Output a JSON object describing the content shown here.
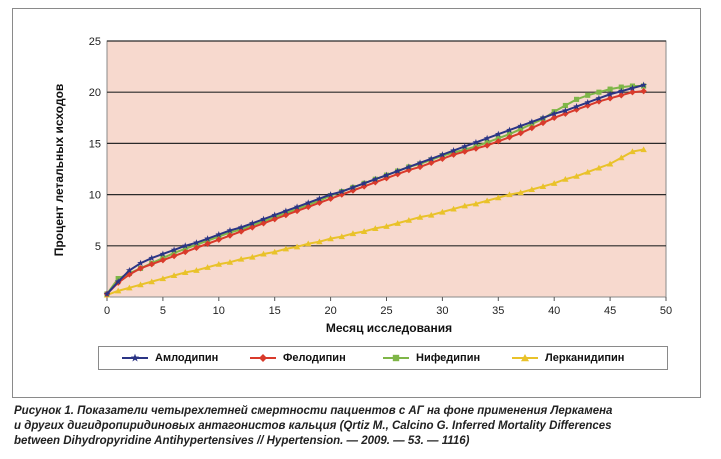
{
  "chart_data": {
    "type": "line",
    "xlabel": "Месяц исследования",
    "ylabel": "Процент летальных исходов",
    "xlim": [
      0,
      50
    ],
    "ylim": [
      0,
      25
    ],
    "x_ticks": [
      "0",
      "5",
      "10",
      "15",
      "20",
      "25",
      "30",
      "35",
      "40",
      "45",
      "50"
    ],
    "y_ticks": [
      "5",
      "10",
      "15",
      "20",
      "25"
    ],
    "grid": true,
    "legend_position": "bottom",
    "plot_background": "#f7d9ce",
    "series": [
      {
        "name": "Амлодипин",
        "color": "#2b3585",
        "marker": "star",
        "x": [
          0,
          1,
          2,
          3,
          4,
          5,
          6,
          7,
          8,
          9,
          10,
          11,
          12,
          13,
          14,
          15,
          16,
          17,
          18,
          19,
          20,
          21,
          22,
          23,
          24,
          25,
          26,
          27,
          28,
          29,
          30,
          31,
          32,
          33,
          34,
          35,
          36,
          37,
          38,
          39,
          40,
          41,
          42,
          43,
          44,
          45,
          46,
          47,
          48
        ],
        "y": [
          0.3,
          1.5,
          2.6,
          3.3,
          3.8,
          4.2,
          4.6,
          5.0,
          5.3,
          5.7,
          6.1,
          6.5,
          6.8,
          7.2,
          7.6,
          8.0,
          8.4,
          8.8,
          9.2,
          9.6,
          10.0,
          10.3,
          10.7,
          11.1,
          11.5,
          11.9,
          12.3,
          12.7,
          13.1,
          13.5,
          13.9,
          14.3,
          14.7,
          15.1,
          15.5,
          15.9,
          16.3,
          16.7,
          17.1,
          17.5,
          17.9,
          18.2,
          18.6,
          19.0,
          19.4,
          19.8,
          20.1,
          20.4,
          20.7
        ]
      },
      {
        "name": "Фелодипин",
        "color": "#d93a2b",
        "marker": "diamond",
        "x": [
          0,
          1,
          2,
          3,
          4,
          5,
          6,
          7,
          8,
          9,
          10,
          11,
          12,
          13,
          14,
          15,
          16,
          17,
          18,
          19,
          20,
          21,
          22,
          23,
          24,
          25,
          26,
          27,
          28,
          29,
          30,
          31,
          32,
          33,
          34,
          35,
          36,
          37,
          38,
          39,
          40,
          41,
          42,
          43,
          44,
          45,
          46,
          47,
          48
        ],
        "y": [
          0.3,
          1.4,
          2.2,
          2.8,
          3.2,
          3.6,
          4.0,
          4.4,
          4.8,
          5.2,
          5.6,
          6.0,
          6.4,
          6.8,
          7.2,
          7.6,
          8.0,
          8.4,
          8.8,
          9.2,
          9.6,
          10.0,
          10.4,
          10.8,
          11.2,
          11.6,
          12.0,
          12.4,
          12.7,
          13.1,
          13.5,
          13.9,
          14.2,
          14.5,
          14.8,
          15.2,
          15.6,
          16.0,
          16.5,
          17.0,
          17.5,
          17.9,
          18.3,
          18.7,
          19.1,
          19.4,
          19.7,
          20.0,
          20.1
        ]
      },
      {
        "name": "Нифедипин",
        "color": "#7fb648",
        "marker": "square",
        "x": [
          0,
          1,
          2,
          3,
          4,
          5,
          6,
          7,
          8,
          9,
          10,
          11,
          12,
          13,
          14,
          15,
          16,
          17,
          18,
          19,
          20,
          21,
          22,
          23,
          24,
          25,
          26,
          27,
          28,
          29,
          30,
          31,
          32,
          33,
          34,
          35,
          36,
          37,
          38,
          39,
          40,
          41,
          42,
          43,
          44,
          45,
          46,
          47,
          48
        ],
        "y": [
          0.3,
          1.8,
          2.3,
          2.8,
          3.3,
          3.8,
          4.3,
          4.7,
          5.1,
          5.5,
          5.9,
          6.3,
          6.6,
          7.0,
          7.4,
          7.8,
          8.2,
          8.6,
          9.0,
          9.4,
          9.9,
          10.3,
          10.7,
          11.1,
          11.5,
          11.9,
          12.3,
          12.7,
          13.0,
          13.4,
          13.8,
          14.1,
          14.4,
          14.7,
          15.1,
          15.5,
          15.9,
          16.4,
          16.9,
          17.4,
          18.1,
          18.7,
          19.3,
          19.7,
          20.0,
          20.3,
          20.5,
          20.6,
          20.6
        ]
      },
      {
        "name": "Лерканидипин",
        "color": "#e9c22a",
        "marker": "triangle",
        "x": [
          0,
          1,
          2,
          3,
          4,
          5,
          6,
          7,
          8,
          9,
          10,
          11,
          12,
          13,
          14,
          15,
          16,
          17,
          18,
          19,
          20,
          21,
          22,
          23,
          24,
          25,
          26,
          27,
          28,
          29,
          30,
          31,
          32,
          33,
          34,
          35,
          36,
          37,
          38,
          39,
          40,
          41,
          42,
          43,
          44,
          45,
          46,
          47,
          48
        ],
        "y": [
          0.2,
          0.6,
          0.9,
          1.2,
          1.5,
          1.8,
          2.1,
          2.4,
          2.6,
          2.9,
          3.2,
          3.4,
          3.7,
          3.9,
          4.2,
          4.4,
          4.7,
          4.9,
          5.2,
          5.4,
          5.7,
          5.9,
          6.2,
          6.4,
          6.7,
          6.9,
          7.2,
          7.5,
          7.8,
          8.0,
          8.3,
          8.6,
          8.9,
          9.1,
          9.4,
          9.7,
          10.0,
          10.2,
          10.5,
          10.8,
          11.1,
          11.5,
          11.8,
          12.2,
          12.6,
          13.0,
          13.6,
          14.2,
          14.4
        ]
      }
    ]
  },
  "caption": {
    "line1": "Рисунок 1. Показатели четырехлетней смертности пациентов с АГ на фоне применения Леркамена",
    "line2": "и других дигидропиридиновых антагонистов кальция (Qrtiz M., Calcino G. Inferred Mortality Differences",
    "line3": "between Dihydropyridine Antihypertensives // Hypertension. — 2009. — 53. — 1116)"
  }
}
